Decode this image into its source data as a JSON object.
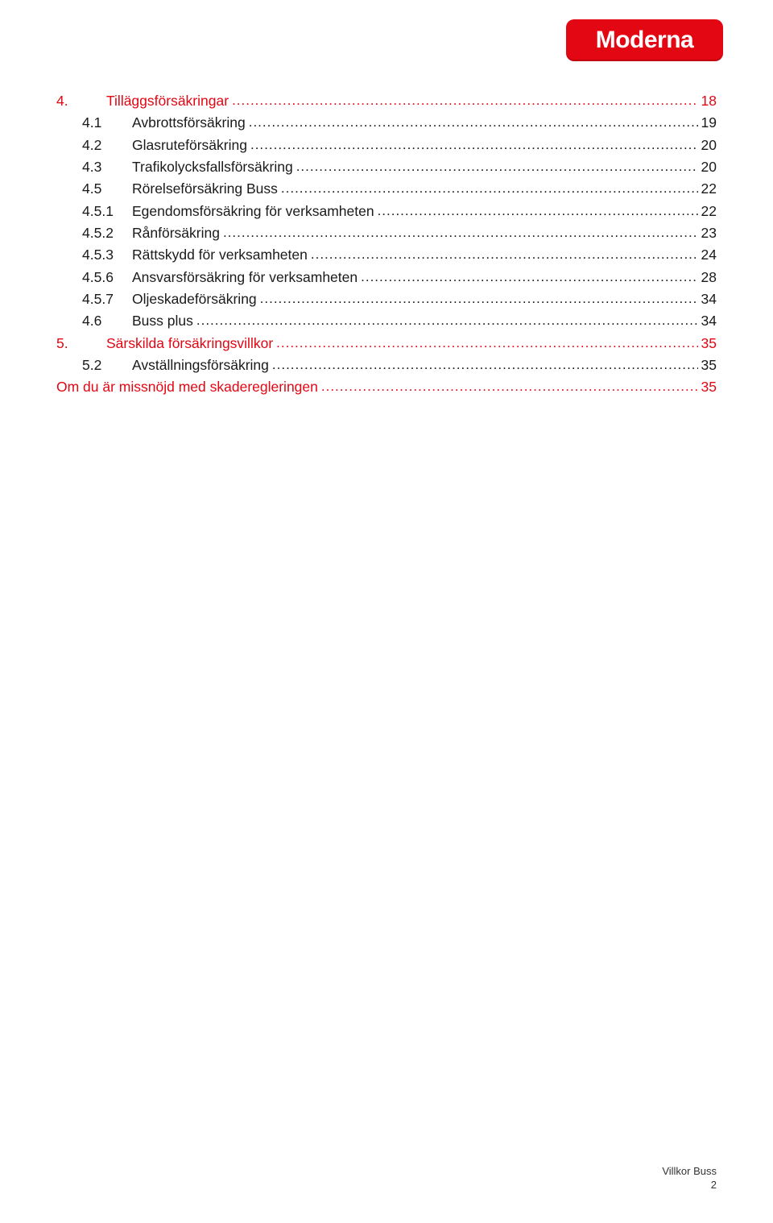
{
  "logo": {
    "text": "Moderna"
  },
  "toc": {
    "entries": [
      {
        "num": "4.",
        "title": "Tilläggsförsäkringar",
        "page": "18",
        "level": 0,
        "color": "red"
      },
      {
        "num": "4.1",
        "title": "Avbrottsförsäkring",
        "page": "19",
        "level": 1,
        "color": "black"
      },
      {
        "num": "4.2",
        "title": "Glasruteförsäkring",
        "page": "20",
        "level": 1,
        "color": "black"
      },
      {
        "num": "4.3",
        "title": "Trafikolycksfallsförsäkring",
        "page": "20",
        "level": 1,
        "color": "black"
      },
      {
        "num": "4.5",
        "title": "Rörelseförsäkring Buss",
        "page": "22",
        "level": 1,
        "color": "black"
      },
      {
        "num": "4.5.1",
        "title": "Egendomsförsäkring för verksamheten",
        "page": "22",
        "level": 2,
        "color": "black"
      },
      {
        "num": "4.5.2",
        "title": "Rånförsäkring",
        "page": "23",
        "level": 2,
        "color": "black"
      },
      {
        "num": "4.5.3",
        "title": "Rättskydd för verksamheten",
        "page": "24",
        "level": 2,
        "color": "black"
      },
      {
        "num": "4.5.6",
        "title": " Ansvarsförsäkring för verksamheten",
        "page": "28",
        "level": 2,
        "color": "black"
      },
      {
        "num": "4.5.7",
        "title": "Oljeskadeförsäkring",
        "page": "34",
        "level": 2,
        "color": "black"
      },
      {
        "num": "4.6",
        "title": "Buss plus",
        "page": "34",
        "level": 1,
        "color": "black"
      },
      {
        "num": "5.",
        "title": "Särskilda försäkringsvillkor",
        "page": "35",
        "level": 0,
        "color": "red"
      },
      {
        "num": "5.2",
        "title": "Avställningsförsäkring",
        "page": "35",
        "level": 1,
        "color": "black"
      },
      {
        "num": "",
        "title": "Om du är missnöjd med skaderegleringen",
        "page": "35",
        "level": -1,
        "color": "red"
      }
    ]
  },
  "footer": {
    "line1": "Villkor Buss",
    "line2": "2"
  },
  "colors": {
    "brand_red": "#e30613",
    "text_black": "#1a1a1a",
    "background": "#ffffff"
  }
}
